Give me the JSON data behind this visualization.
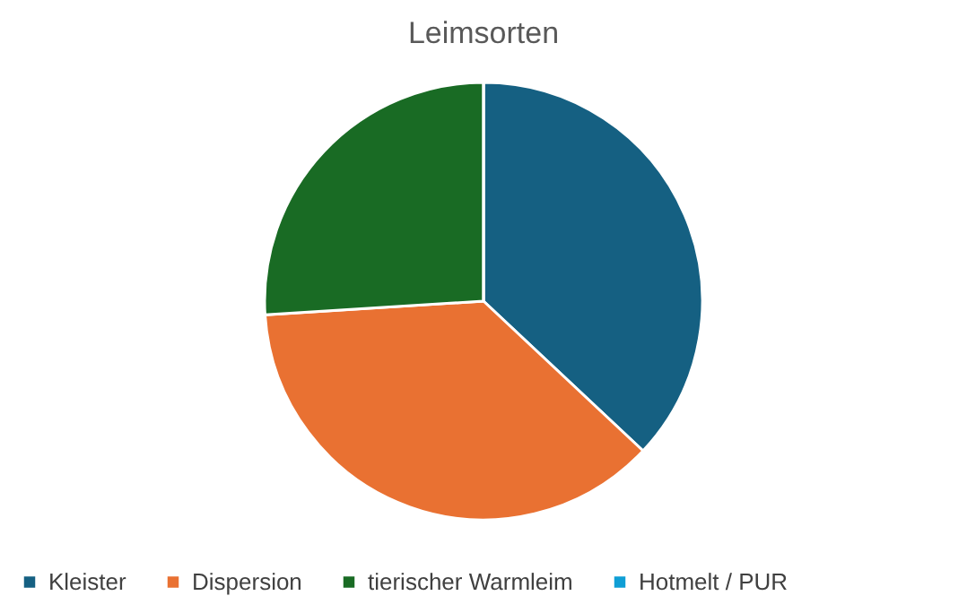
{
  "chart_data": {
    "type": "pie",
    "title": "Leimsorten",
    "categories": [
      "Kleister",
      "Dispersion",
      "tierischer Warmleim",
      "Hotmelt / PUR"
    ],
    "values": [
      37,
      37,
      26,
      0
    ],
    "colors": [
      "#156082",
      "#e97132",
      "#196b24",
      "#0f9ed5"
    ],
    "legend": "bottom"
  }
}
